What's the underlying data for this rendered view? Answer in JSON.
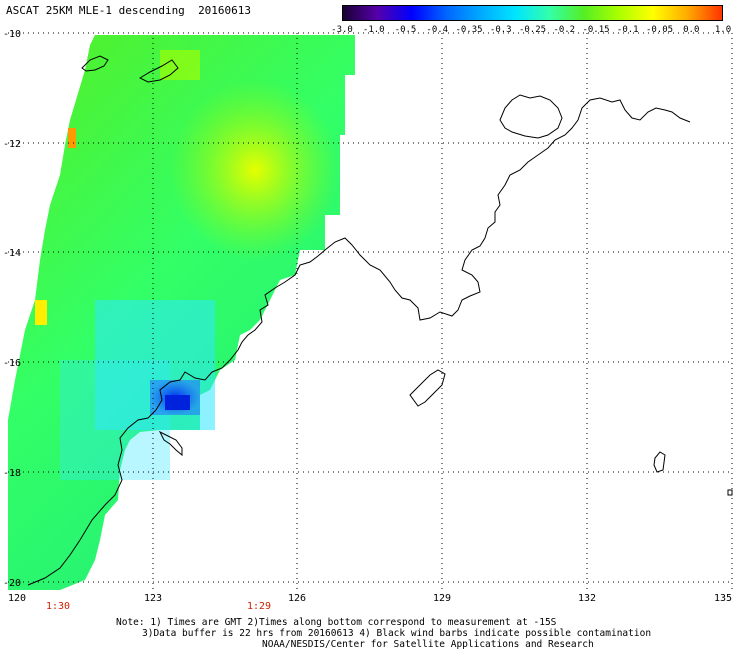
{
  "title": "ASCAT 25KM MLE-1 descending",
  "date": "20160613",
  "colorbar": {
    "labels": [
      "-3.0",
      "-1.0",
      "-0.5",
      "-0.4",
      "-0.35",
      "-0.3",
      "-0.25",
      "-0.2",
      "-0.15",
      "-0.1",
      "-0.05",
      "0.0",
      "1.0"
    ],
    "colors": [
      "#1a0033",
      "#5500aa",
      "#0000ff",
      "#0066ff",
      "#00aaff",
      "#00e5ff",
      "#33ffaa",
      "#55ee22",
      "#aaff00",
      "#ffff00",
      "#ffaa00",
      "#ff3300"
    ]
  },
  "axes": {
    "lon_labels": [
      "120",
      "123",
      "126",
      "129",
      "132",
      "135"
    ],
    "lat_labels": [
      "-10",
      "-12",
      "-14",
      "-16",
      "-18",
      "-20"
    ]
  },
  "time_labels": [
    {
      "text": "1:30"
    },
    {
      "text": "1:29"
    }
  ],
  "notes": [
    "Note: 1) Times are GMT 2)Times along bottom correspond to measurement at -15S",
    "3)Data buffer is 22 hrs from 20160613 4) Black wind barbs indicate possible contamination",
    "NOAA/NESDIS/Center for Satellite Applications and Research"
  ]
}
